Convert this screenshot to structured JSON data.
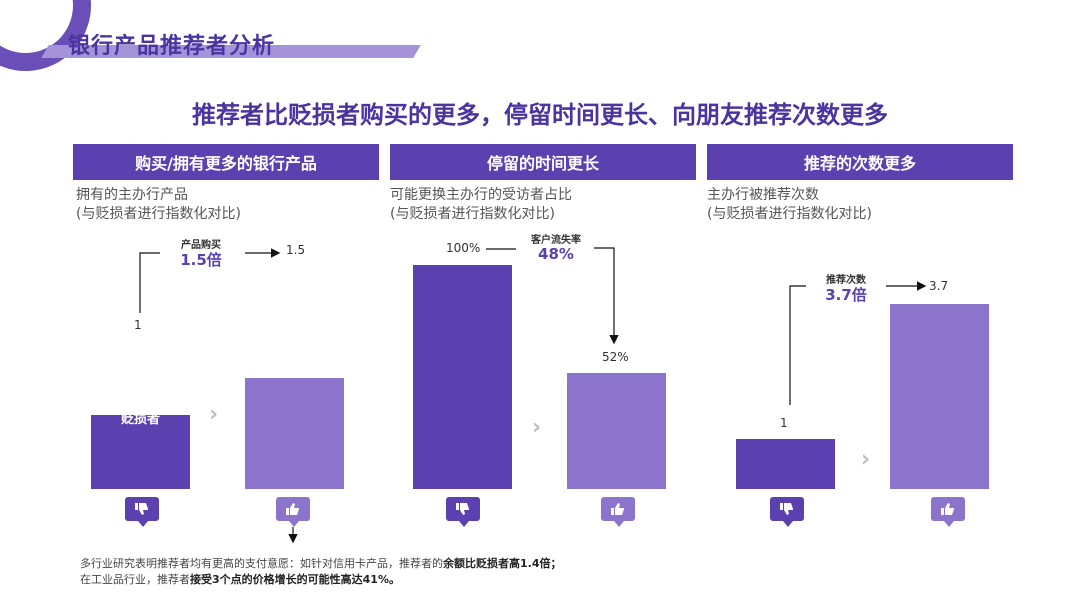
{
  "page_title": "银行产品推荐者分析",
  "headline": "推荐者比贬损者购买的更多，停留时间更长、向朋友推荐次数更多",
  "colors": {
    "dark": "#5b40b0",
    "light": "#8c74cc",
    "title": "#4a34a0"
  },
  "icons": {
    "detractor": "thumbs-down-icon",
    "promoter": "thumbs-up-icon",
    "separator": "chevron-right-icon"
  },
  "panels": [
    {
      "header": "购买/拥有更多的银行产品",
      "sub1": "拥有的主办行产品",
      "sub2": "(与贬损者进行指数化对比)",
      "bar1_label": "贬损者",
      "bar2_label": "推荐者",
      "val1": "1",
      "val2": "1.5",
      "callout_small": "产品购买",
      "callout_big": "1.5倍"
    },
    {
      "header": "停留的时间更长",
      "sub1": "可能更换主办行的受访者占比",
      "sub2": "(与贬损者进行指数化对比)",
      "val1": "100%",
      "val2": "52%",
      "callout_small": "客户流失率",
      "callout_big": "48%"
    },
    {
      "header": "推荐的次数更多",
      "sub1": "主办行被推荐次数",
      "sub2": "(与贬损者进行指数化对比)",
      "val1": "1",
      "val2": "3.7",
      "callout_small": "推荐次数",
      "callout_big": "3.7倍"
    }
  ],
  "chart_data": [
    {
      "type": "bar",
      "title": "购买/拥有更多的银行产品",
      "categories": [
        "贬损者",
        "推荐者"
      ],
      "values": [
        1,
        1.5
      ]
    },
    {
      "type": "bar",
      "title": "停留的时间更长",
      "categories": [
        "",
        ""
      ],
      "values": [
        100,
        52
      ],
      "unit": "%"
    },
    {
      "type": "bar",
      "title": "推荐的次数更多",
      "categories": [
        "",
        ""
      ],
      "values": [
        1,
        3.7
      ]
    }
  ],
  "footnote": {
    "line1_plain": "多行业研究表明推荐者均有更高的支付意愿：如针对信用卡产品，推荐者的",
    "line1_bold": "余额比贬损者高1.4倍；",
    "line2_plain": "在工业品行业，推荐者",
    "line2_bold": "接受3个点的价格增长的可能性高达41%。"
  }
}
